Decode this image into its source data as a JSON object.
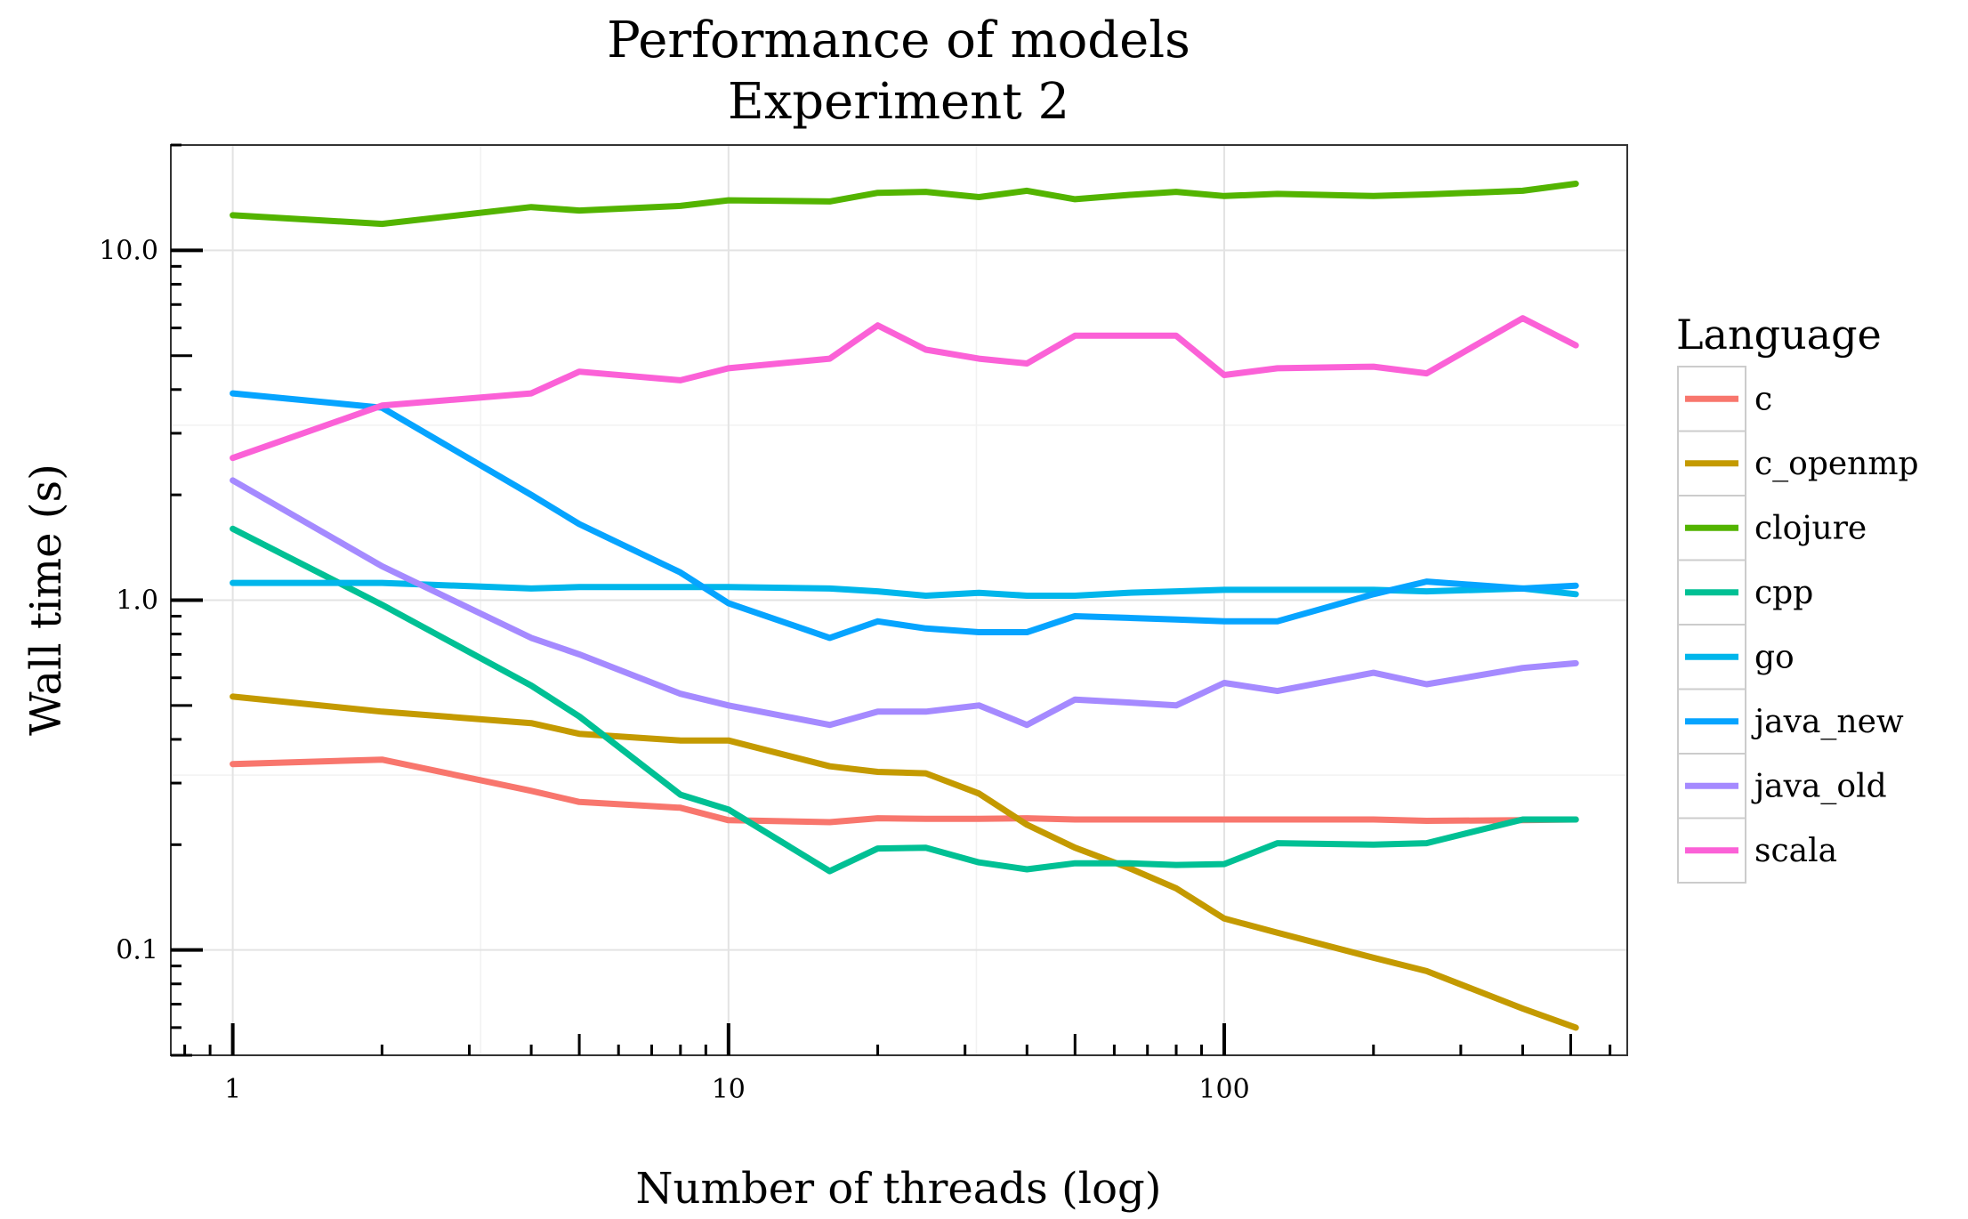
{
  "chart_data": {
    "type": "line",
    "title": [
      "Performance of models",
      "Experiment 2"
    ],
    "xlabel": "Number of threads (log)",
    "ylabel": "Wall time (s)",
    "x_scale": "log",
    "y_scale": "log",
    "xlim": [
      0.75,
      650
    ],
    "ylim": [
      0.05,
      20
    ],
    "x_ticks": [
      {
        "value": 1,
        "label": "1"
      },
      {
        "value": 10,
        "label": "10"
      },
      {
        "value": 100,
        "label": "100"
      }
    ],
    "y_ticks": [
      {
        "value": 0.1,
        "label": "0.1"
      },
      {
        "value": 1,
        "label": "1.0"
      },
      {
        "value": 10,
        "label": "10.0"
      }
    ],
    "grid": true,
    "legend": {
      "title": "Language",
      "position": "right"
    },
    "series": [
      {
        "name": "c",
        "color": "#F8766D",
        "points": [
          [
            1,
            0.34
          ],
          [
            2,
            0.35
          ],
          [
            4,
            0.285
          ],
          [
            5,
            0.265
          ],
          [
            8,
            0.255
          ],
          [
            10,
            0.235
          ],
          [
            16,
            0.232
          ],
          [
            20,
            0.238
          ],
          [
            25,
            0.237
          ],
          [
            32,
            0.237
          ],
          [
            40,
            0.238
          ],
          [
            50,
            0.236
          ],
          [
            64,
            0.236
          ],
          [
            80,
            0.236
          ],
          [
            100,
            0.236
          ],
          [
            128,
            0.236
          ],
          [
            200,
            0.236
          ],
          [
            256,
            0.234
          ],
          [
            400,
            0.235
          ],
          [
            512,
            0.236
          ]
        ]
      },
      {
        "name": "c_openmp",
        "color": "#C49A00",
        "points": [
          [
            1,
            0.53
          ],
          [
            2,
            0.48
          ],
          [
            4,
            0.445
          ],
          [
            5,
            0.415
          ],
          [
            8,
            0.397
          ],
          [
            10,
            0.397
          ],
          [
            16,
            0.335
          ],
          [
            20,
            0.323
          ],
          [
            25,
            0.32
          ],
          [
            32,
            0.28
          ],
          [
            40,
            0.228
          ],
          [
            50,
            0.196
          ],
          [
            64,
            0.172
          ],
          [
            80,
            0.15
          ],
          [
            100,
            0.123
          ],
          [
            128,
            0.112
          ],
          [
            200,
            0.095
          ],
          [
            256,
            0.087
          ],
          [
            400,
            0.068
          ],
          [
            512,
            0.06
          ]
        ]
      },
      {
        "name": "clojure",
        "color": "#53B400",
        "points": [
          [
            1,
            12.6
          ],
          [
            2,
            11.9
          ],
          [
            4,
            13.3
          ],
          [
            5,
            13.0
          ],
          [
            8,
            13.4
          ],
          [
            10,
            13.9
          ],
          [
            16,
            13.8
          ],
          [
            20,
            14.6
          ],
          [
            25,
            14.7
          ],
          [
            32,
            14.2
          ],
          [
            40,
            14.8
          ],
          [
            50,
            14.0
          ],
          [
            64,
            14.4
          ],
          [
            80,
            14.7
          ],
          [
            100,
            14.3
          ],
          [
            128,
            14.5
          ],
          [
            200,
            14.3
          ],
          [
            256,
            14.45
          ],
          [
            400,
            14.8
          ],
          [
            512,
            15.5
          ]
        ]
      },
      {
        "name": "cpp",
        "color": "#00C094",
        "points": [
          [
            1,
            1.6
          ],
          [
            2,
            0.97
          ],
          [
            4,
            0.57
          ],
          [
            5,
            0.465
          ],
          [
            8,
            0.278
          ],
          [
            10,
            0.252
          ],
          [
            16,
            0.168
          ],
          [
            20,
            0.195
          ],
          [
            25,
            0.196
          ],
          [
            32,
            0.178
          ],
          [
            40,
            0.17
          ],
          [
            50,
            0.177
          ],
          [
            64,
            0.177
          ],
          [
            80,
            0.175
          ],
          [
            100,
            0.176
          ],
          [
            128,
            0.202
          ],
          [
            200,
            0.2
          ],
          [
            256,
            0.202
          ],
          [
            400,
            0.236
          ],
          [
            512,
            0.236
          ]
        ]
      },
      {
        "name": "go",
        "color": "#00B6EB",
        "points": [
          [
            1,
            1.12
          ],
          [
            2,
            1.12
          ],
          [
            4,
            1.08
          ],
          [
            5,
            1.09
          ],
          [
            8,
            1.09
          ],
          [
            10,
            1.09
          ],
          [
            16,
            1.08
          ],
          [
            20,
            1.06
          ],
          [
            25,
            1.03
          ],
          [
            32,
            1.05
          ],
          [
            40,
            1.03
          ],
          [
            50,
            1.03
          ],
          [
            64,
            1.05
          ],
          [
            80,
            1.06
          ],
          [
            100,
            1.07
          ],
          [
            128,
            1.07
          ],
          [
            200,
            1.07
          ],
          [
            256,
            1.06
          ],
          [
            400,
            1.08
          ],
          [
            512,
            1.04
          ]
        ]
      },
      {
        "name": "java_new",
        "color": "#06A4FF",
        "points": [
          [
            1,
            3.9
          ],
          [
            2,
            3.55
          ],
          [
            4,
            2.0
          ],
          [
            5,
            1.65
          ],
          [
            8,
            1.2
          ],
          [
            10,
            0.98
          ],
          [
            16,
            0.78
          ],
          [
            20,
            0.87
          ],
          [
            25,
            0.83
          ],
          [
            32,
            0.81
          ],
          [
            40,
            0.81
          ],
          [
            50,
            0.9
          ],
          [
            64,
            0.89
          ],
          [
            80,
            0.88
          ],
          [
            100,
            0.87
          ],
          [
            128,
            0.87
          ],
          [
            200,
            1.04
          ],
          [
            256,
            1.13
          ],
          [
            400,
            1.08
          ],
          [
            512,
            1.1
          ]
        ]
      },
      {
        "name": "java_old",
        "color": "#A58AFF",
        "points": [
          [
            1,
            2.2
          ],
          [
            2,
            1.25
          ],
          [
            4,
            0.78
          ],
          [
            5,
            0.7
          ],
          [
            8,
            0.54
          ],
          [
            10,
            0.5
          ],
          [
            16,
            0.44
          ],
          [
            20,
            0.48
          ],
          [
            25,
            0.48
          ],
          [
            32,
            0.5
          ],
          [
            40,
            0.44
          ],
          [
            50,
            0.52
          ],
          [
            64,
            0.51
          ],
          [
            80,
            0.5
          ],
          [
            100,
            0.58
          ],
          [
            128,
            0.55
          ],
          [
            200,
            0.62
          ],
          [
            256,
            0.575
          ],
          [
            400,
            0.64
          ],
          [
            512,
            0.66
          ]
        ]
      },
      {
        "name": "scala",
        "color": "#FB61D7",
        "points": [
          [
            1,
            2.55
          ],
          [
            2,
            3.6
          ],
          [
            4,
            3.9
          ],
          [
            5,
            4.5
          ],
          [
            8,
            4.25
          ],
          [
            10,
            4.6
          ],
          [
            16,
            4.9
          ],
          [
            20,
            6.1
          ],
          [
            25,
            5.2
          ],
          [
            32,
            4.9
          ],
          [
            40,
            4.75
          ],
          [
            50,
            5.7
          ],
          [
            64,
            5.7
          ],
          [
            80,
            5.7
          ],
          [
            100,
            4.4
          ],
          [
            128,
            4.6
          ],
          [
            200,
            4.65
          ],
          [
            256,
            4.45
          ],
          [
            400,
            6.4
          ],
          [
            512,
            5.35
          ]
        ]
      }
    ]
  }
}
